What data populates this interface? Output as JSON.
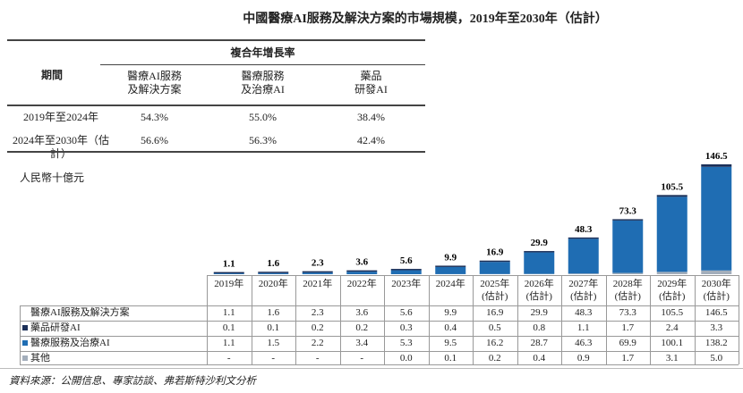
{
  "title": "中國醫療AI服務及解決方案的市場規模，2019年至2030年（估計）",
  "cagr_table": {
    "group_header": "複合年增長率",
    "period_header": "期間",
    "columns": [
      [
        "醫療AI服務",
        "及解決方案"
      ],
      [
        "醫療服務",
        "及治療AI"
      ],
      [
        "藥品",
        "研發AI"
      ]
    ],
    "rows": [
      {
        "period": "2019年至2024年",
        "values": [
          "54.3%",
          "55.0%",
          "38.4%"
        ]
      },
      {
        "period": "2024年至2030年（估計）",
        "values": [
          "56.6%",
          "56.3%",
          "42.4%"
        ]
      }
    ]
  },
  "unit": "人民幣十億元",
  "source": "資料來源：公開信息、專家訪談、弗若斯特沙利文分析",
  "colors": {
    "drug": "#1b2f58",
    "medical": "#1f6db3",
    "other": "#a3aebb"
  },
  "chart_data": {
    "type": "bar",
    "stacked": true,
    "categories": [
      [
        "2019年"
      ],
      [
        "2020年"
      ],
      [
        "2021年"
      ],
      [
        "2022年"
      ],
      [
        "2023年"
      ],
      [
        "2024年"
      ],
      [
        "2025年",
        "(估計)"
      ],
      [
        "2026年",
        "(估計)"
      ],
      [
        "2027年",
        "(估計)"
      ],
      [
        "2028年",
        "(估計)"
      ],
      [
        "2029年",
        "(估計)"
      ],
      [
        "2030年",
        "(估計)"
      ]
    ],
    "ylabel": "人民幣十億元",
    "total": {
      "name": "醫療AI服務及解決方案",
      "values": [
        1.1,
        1.6,
        2.3,
        3.6,
        5.6,
        9.9,
        16.9,
        29.9,
        48.3,
        73.3,
        105.5,
        146.5
      ],
      "labels": [
        "1.1",
        "1.6",
        "2.3",
        "3.6",
        "5.6",
        "9.9",
        "16.9",
        "29.9",
        "48.3",
        "73.3",
        "105.5",
        "146.5"
      ]
    },
    "series": [
      {
        "name": "藥品研發AI",
        "key": "drug",
        "values": [
          0.1,
          0.1,
          0.2,
          0.2,
          0.3,
          0.4,
          0.5,
          0.8,
          1.1,
          1.7,
          2.4,
          3.3
        ],
        "labels": [
          "0.1",
          "0.1",
          "0.2",
          "0.2",
          "0.3",
          "0.4",
          "0.5",
          "0.8",
          "1.1",
          "1.7",
          "2.4",
          "3.3"
        ]
      },
      {
        "name": "醫療服務及治療AI",
        "key": "medical",
        "values": [
          1.1,
          1.5,
          2.2,
          3.4,
          5.3,
          9.5,
          16.2,
          28.7,
          46.3,
          69.9,
          100.1,
          138.2
        ],
        "labels": [
          "1.1",
          "1.5",
          "2.2",
          "3.4",
          "5.3",
          "9.5",
          "16.2",
          "28.7",
          "46.3",
          "69.9",
          "100.1",
          "138.2"
        ]
      },
      {
        "name": "其他",
        "key": "other",
        "values": [
          0,
          0,
          0,
          0,
          0.0,
          0.1,
          0.2,
          0.4,
          0.9,
          1.7,
          3.1,
          5.0
        ],
        "labels": [
          "-",
          "-",
          "-",
          "-",
          "0.0",
          "0.1",
          "0.2",
          "0.4",
          "0.9",
          "1.7",
          "3.1",
          "5.0"
        ]
      }
    ]
  }
}
